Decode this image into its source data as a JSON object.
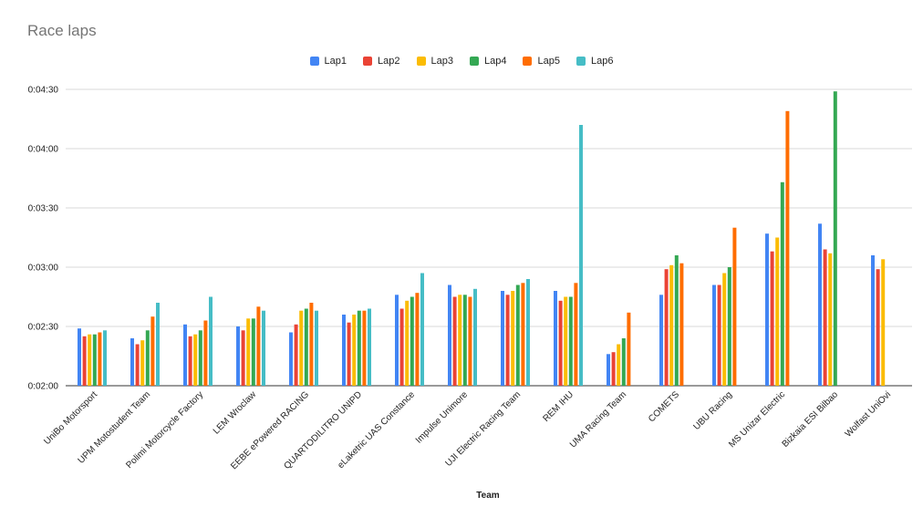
{
  "chart_data": {
    "type": "bar",
    "title": "Race laps",
    "xlabel": "Team",
    "ylabel": "",
    "ylim": [
      120,
      270
    ],
    "y_ticks": [
      "0:02:00",
      "0:02:30",
      "0:03:00",
      "0:03:30",
      "0:04:00",
      "0:04:30"
    ],
    "y_tick_values": [
      120,
      150,
      180,
      210,
      240,
      270
    ],
    "legend_position": "top",
    "grid": true,
    "categories": [
      "UniBo Motorsport",
      "UPM Motostudent Team",
      "Polimi Motorcycle Factory",
      "LEM Wroclaw",
      "EEBE ePowered RACING",
      "QUARTODILITRO UNIPD",
      "eLaketric UAS Constance",
      "Impulse Unimore",
      "UJI Electric Racing Team",
      "REM IHU",
      "UMA Racing Team",
      "COMETS",
      "UBU Racing",
      "MS Unizar Electric",
      "Bizkaia ESI Bilbao",
      "Wolfast UniOvi"
    ],
    "series": [
      {
        "name": "Lap1",
        "color": "#4285F4",
        "values": [
          149,
          144,
          151,
          150,
          147,
          156,
          166,
          171,
          168,
          168,
          136,
          166,
          171,
          197,
          202,
          186
        ]
      },
      {
        "name": "Lap2",
        "color": "#EA4335",
        "values": [
          145,
          141,
          145,
          148,
          151,
          152,
          159,
          165,
          166,
          163,
          137,
          179,
          171,
          188,
          189,
          179
        ]
      },
      {
        "name": "Lap3",
        "color": "#FBBC04",
        "values": [
          146,
          143,
          146,
          154,
          158,
          156,
          163,
          166,
          168,
          165,
          141,
          181,
          177,
          195,
          187,
          184
        ]
      },
      {
        "name": "Lap4",
        "color": "#34A853",
        "values": [
          146,
          148,
          148,
          154,
          159,
          158,
          165,
          166,
          171,
          165,
          144,
          186,
          180,
          223,
          269,
          null
        ]
      },
      {
        "name": "Lap5",
        "color": "#FF6D01",
        "values": [
          147,
          155,
          153,
          160,
          162,
          158,
          167,
          165,
          172,
          172,
          157,
          182,
          200,
          259,
          null,
          null
        ]
      },
      {
        "name": "Lap6",
        "color": "#46BDC6",
        "values": [
          148,
          162,
          165,
          158,
          158,
          159,
          177,
          169,
          174,
          252,
          null,
          null,
          null,
          null,
          null,
          null
        ]
      }
    ]
  }
}
